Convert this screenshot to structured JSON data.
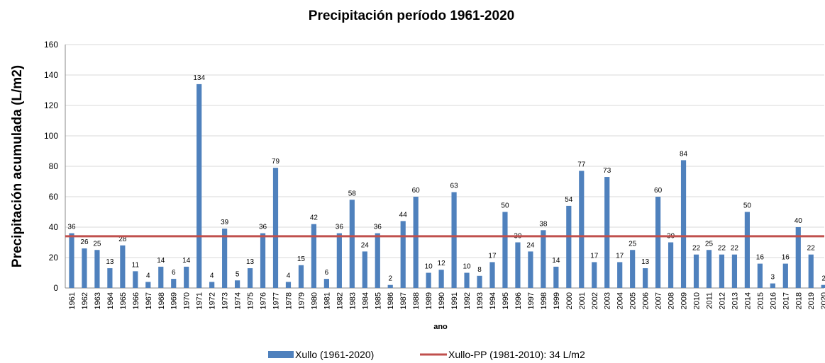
{
  "chart_data": {
    "type": "bar",
    "title": "Precipitación período 1961-2020",
    "y_label": "Precipitación acumulada (L/m2)",
    "x_label": "ano",
    "categories": [
      "1961",
      "1962",
      "1963",
      "1964",
      "1965",
      "1966",
      "1967",
      "1968",
      "1969",
      "1970",
      "1971",
      "1972",
      "1973",
      "1974",
      "1975",
      "1976",
      "1977",
      "1978",
      "1979",
      "1980",
      "1981",
      "1982",
      "1983",
      "1984",
      "1985",
      "1986",
      "1987",
      "1988",
      "1989",
      "1990",
      "1991",
      "1992",
      "1993",
      "1994",
      "1995",
      "1996",
      "1997",
      "1998",
      "1999",
      "2000",
      "2001",
      "2002",
      "2003",
      "2004",
      "2005",
      "2006",
      "2007",
      "2008",
      "2009",
      "2010",
      "2011",
      "2012",
      "2013",
      "2014",
      "2015",
      "2016",
      "2017",
      "2018",
      "2019",
      "2020"
    ],
    "series": [
      {
        "name": "Xullo (1961-2020)",
        "color": "#4f81bd",
        "values": [
          36,
          26,
          25,
          13,
          28,
          11,
          4,
          14,
          6,
          14,
          134,
          4,
          39,
          5,
          13,
          36,
          79,
          4,
          15,
          42,
          6,
          36,
          58,
          24,
          36,
          2,
          44,
          60,
          10,
          12,
          63,
          10,
          8,
          17,
          50,
          30,
          24,
          38,
          14,
          54,
          77,
          17,
          73,
          17,
          25,
          13,
          60,
          30,
          84,
          22,
          25,
          22,
          22,
          50,
          16,
          3,
          16,
          40,
          22,
          2
        ]
      }
    ],
    "reference_line": {
      "name": "Xullo-PP (1981-2010): 34 L/m2",
      "value": 34,
      "color": "#c0504d"
    },
    "ylim": [
      0,
      160
    ],
    "yticks": [
      0,
      20,
      40,
      60,
      80,
      100,
      120,
      140,
      160
    ],
    "grid": true
  }
}
